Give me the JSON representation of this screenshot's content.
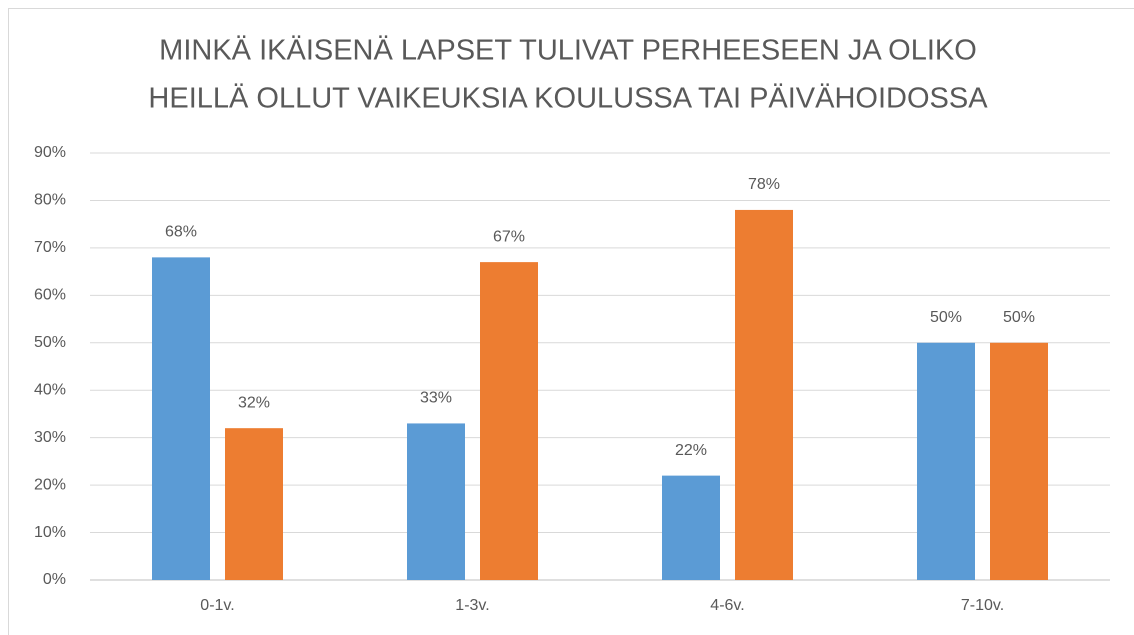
{
  "chart_data": {
    "type": "bar",
    "title": [
      "MINKÄ IKÄISENÄ LAPSET TULIVAT PERHEESEEN JA OLIKO",
      "HEILLÄ OLLUT VAIKEUKSIA KOULUSSA TAI PÄIVÄHOIDOSSA"
    ],
    "categories": [
      "0-1v.",
      "1-3v.",
      "4-6v.",
      "7-10v."
    ],
    "series": [
      {
        "color": "#5b9bd5",
        "values": [
          68,
          33,
          22,
          50
        ],
        "value_labels": [
          "68%",
          "33%",
          "22%",
          "50%"
        ]
      },
      {
        "color": "#ed7d31",
        "values": [
          32,
          67,
          78,
          50
        ],
        "value_labels": [
          "32%",
          "67%",
          "78%",
          "50%"
        ]
      }
    ],
    "ylim": [
      0,
      90
    ],
    "yticks": [
      {
        "value": 0,
        "label": "0%"
      },
      {
        "value": 10,
        "label": "10%"
      },
      {
        "value": 20,
        "label": "20%"
      },
      {
        "value": 30,
        "label": "30%"
      },
      {
        "value": 40,
        "label": "40%"
      },
      {
        "value": 50,
        "label": "50%"
      },
      {
        "value": 60,
        "label": "60%"
      },
      {
        "value": 70,
        "label": "70%"
      },
      {
        "value": 80,
        "label": "80%"
      },
      {
        "value": 90,
        "label": "90%"
      }
    ],
    "grid": true
  }
}
